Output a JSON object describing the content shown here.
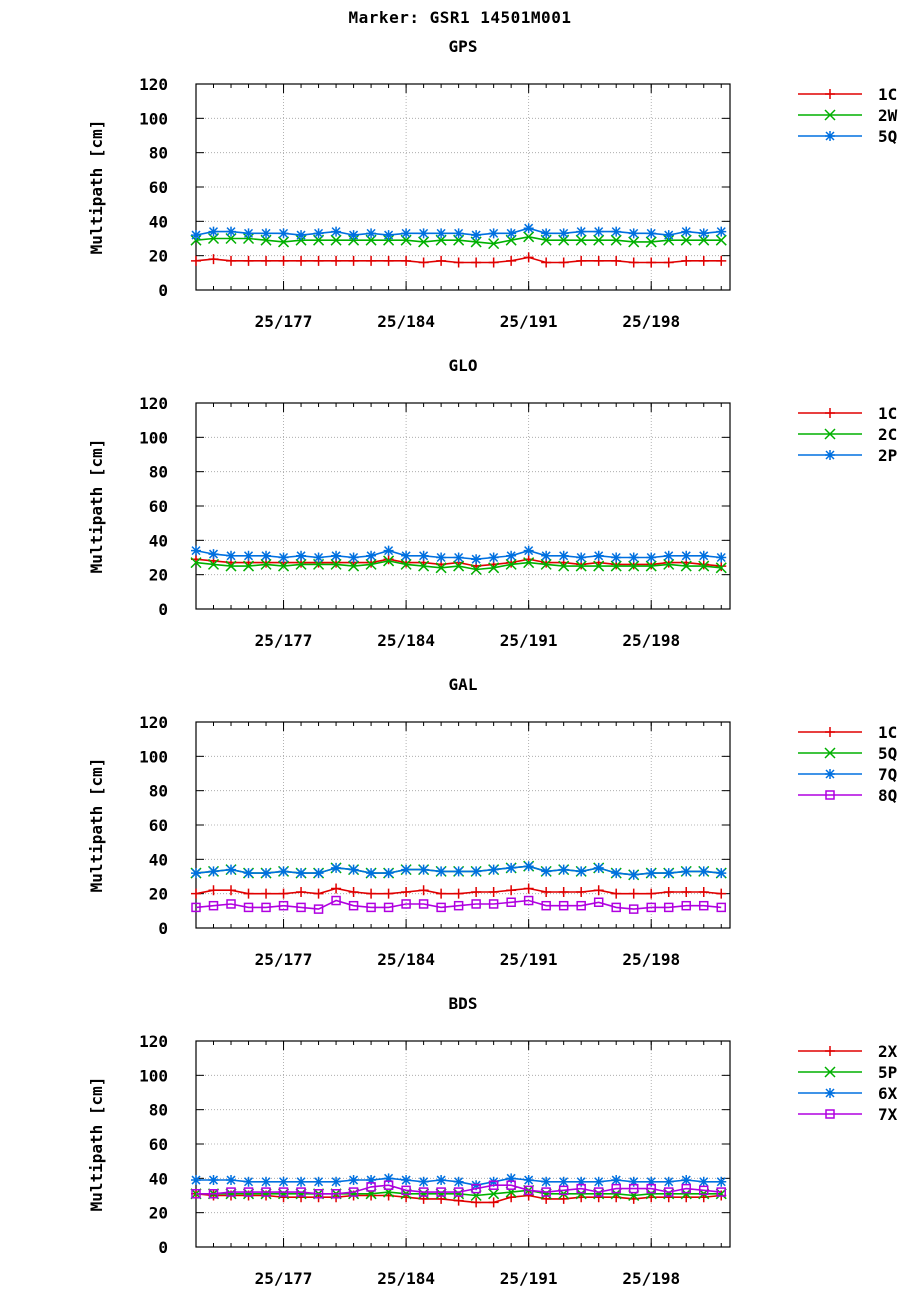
{
  "title": "Marker: GSR1 14501M001",
  "colors": {
    "red": "#e00000",
    "green": "#00b000",
    "blue": "#0070e0",
    "purple": "#b000e0"
  },
  "chart_data": [
    {
      "type": "line",
      "title": "GPS",
      "ylabel": "Multipath [cm]",
      "ylim": [
        0,
        120
      ],
      "yticks": [
        0,
        20,
        40,
        60,
        80,
        100,
        120
      ],
      "xlim": [
        172,
        202.5
      ],
      "xticks": [
        {
          "x": 177,
          "label": "25/177"
        },
        {
          "x": 184,
          "label": "25/184"
        },
        {
          "x": 191,
          "label": "25/191"
        },
        {
          "x": 198,
          "label": "25/198"
        }
      ],
      "legend_position": "right",
      "grid": true,
      "x": [
        172,
        173,
        174,
        175,
        176,
        177,
        178,
        179,
        180,
        181,
        182,
        183,
        184,
        185,
        186,
        187,
        188,
        189,
        190,
        191,
        192,
        193,
        194,
        195,
        196,
        197,
        198,
        199,
        200,
        201,
        202
      ],
      "series": [
        {
          "name": "1C",
          "color": "#e00000",
          "marker": "plus",
          "values": [
            17,
            18,
            17,
            17,
            17,
            17,
            17,
            17,
            17,
            17,
            17,
            17,
            17,
            16,
            17,
            16,
            16,
            16,
            17,
            19,
            16,
            16,
            17,
            17,
            17,
            16,
            16,
            16,
            17,
            17,
            17
          ]
        },
        {
          "name": "2W",
          "color": "#00b000",
          "marker": "x",
          "values": [
            29,
            30,
            30,
            30,
            29,
            28,
            29,
            29,
            29,
            29,
            29,
            29,
            29,
            28,
            29,
            29,
            28,
            27,
            29,
            31,
            29,
            29,
            29,
            29,
            29,
            28,
            28,
            29,
            29,
            29,
            29
          ]
        },
        {
          "name": "5Q",
          "color": "#0070e0",
          "marker": "star",
          "values": [
            32,
            34,
            34,
            33,
            33,
            33,
            32,
            33,
            34,
            32,
            33,
            32,
            33,
            33,
            33,
            33,
            32,
            33,
            33,
            36,
            33,
            33,
            34,
            34,
            34,
            33,
            33,
            32,
            34,
            33,
            34
          ]
        }
      ]
    },
    {
      "type": "line",
      "title": "GLO",
      "ylabel": "Multipath [cm]",
      "ylim": [
        0,
        120
      ],
      "yticks": [
        0,
        20,
        40,
        60,
        80,
        100,
        120
      ],
      "xlim": [
        172,
        202.5
      ],
      "xticks": [
        {
          "x": 177,
          "label": "25/177"
        },
        {
          "x": 184,
          "label": "25/184"
        },
        {
          "x": 191,
          "label": "25/191"
        },
        {
          "x": 198,
          "label": "25/198"
        }
      ],
      "legend_position": "right",
      "grid": true,
      "x": [
        172,
        173,
        174,
        175,
        176,
        177,
        178,
        179,
        180,
        181,
        182,
        183,
        184,
        185,
        186,
        187,
        188,
        189,
        190,
        191,
        192,
        193,
        194,
        195,
        196,
        197,
        198,
        199,
        200,
        201,
        202
      ],
      "series": [
        {
          "name": "1C",
          "color": "#e00000",
          "marker": "plus",
          "values": [
            29,
            28,
            27,
            27,
            27,
            27,
            27,
            27,
            27,
            27,
            27,
            29,
            27,
            27,
            26,
            27,
            25,
            26,
            27,
            29,
            27,
            27,
            26,
            27,
            26,
            26,
            26,
            27,
            27,
            26,
            25
          ]
        },
        {
          "name": "2C",
          "color": "#00b000",
          "marker": "x",
          "values": [
            27,
            26,
            25,
            25,
            26,
            25,
            26,
            26,
            26,
            25,
            26,
            28,
            26,
            25,
            24,
            25,
            23,
            24,
            26,
            27,
            26,
            25,
            25,
            25,
            25,
            25,
            25,
            26,
            25,
            25,
            24
          ]
        },
        {
          "name": "2P",
          "color": "#0070e0",
          "marker": "star",
          "values": [
            34,
            32,
            31,
            31,
            31,
            30,
            31,
            30,
            31,
            30,
            31,
            34,
            31,
            31,
            30,
            30,
            29,
            30,
            31,
            34,
            31,
            31,
            30,
            31,
            30,
            30,
            30,
            31,
            31,
            31,
            30
          ]
        }
      ]
    },
    {
      "type": "line",
      "title": "GAL",
      "ylabel": "Multipath [cm]",
      "ylim": [
        0,
        120
      ],
      "yticks": [
        0,
        20,
        40,
        60,
        80,
        100,
        120
      ],
      "xlim": [
        172,
        202.5
      ],
      "xticks": [
        {
          "x": 177,
          "label": "25/177"
        },
        {
          "x": 184,
          "label": "25/184"
        },
        {
          "x": 191,
          "label": "25/191"
        },
        {
          "x": 198,
          "label": "25/198"
        }
      ],
      "legend_position": "right",
      "grid": true,
      "x": [
        172,
        173,
        174,
        175,
        176,
        177,
        178,
        179,
        180,
        181,
        182,
        183,
        184,
        185,
        186,
        187,
        188,
        189,
        190,
        191,
        192,
        193,
        194,
        195,
        196,
        197,
        198,
        199,
        200,
        201,
        202
      ],
      "series": [
        {
          "name": "1C",
          "color": "#e00000",
          "marker": "plus",
          "values": [
            20,
            22,
            22,
            20,
            20,
            20,
            21,
            20,
            23,
            21,
            20,
            20,
            21,
            22,
            20,
            20,
            21,
            21,
            22,
            23,
            21,
            21,
            21,
            22,
            20,
            20,
            20,
            21,
            21,
            21,
            20
          ]
        },
        {
          "name": "5Q",
          "color": "#00b000",
          "marker": "x",
          "values": [
            32,
            33,
            34,
            32,
            32,
            33,
            32,
            32,
            35,
            34,
            32,
            32,
            34,
            34,
            33,
            33,
            33,
            34,
            35,
            36,
            33,
            34,
            33,
            35,
            32,
            31,
            32,
            32,
            33,
            33,
            32
          ]
        },
        {
          "name": "7Q",
          "color": "#0070e0",
          "marker": "star",
          "values": [
            32,
            33,
            34,
            32,
            32,
            33,
            32,
            32,
            35,
            34,
            32,
            32,
            34,
            34,
            33,
            33,
            33,
            34,
            35,
            36,
            33,
            34,
            33,
            35,
            32,
            31,
            32,
            32,
            33,
            33,
            32
          ]
        },
        {
          "name": "8Q",
          "color": "#b000e0",
          "marker": "square",
          "values": [
            12,
            13,
            14,
            12,
            12,
            13,
            12,
            11,
            16,
            13,
            12,
            12,
            14,
            14,
            12,
            13,
            14,
            14,
            15,
            16,
            13,
            13,
            13,
            15,
            12,
            11,
            12,
            12,
            13,
            13,
            12
          ]
        }
      ]
    },
    {
      "type": "line",
      "title": "BDS",
      "ylabel": "Multipath [cm]",
      "ylim": [
        0,
        120
      ],
      "yticks": [
        0,
        20,
        40,
        60,
        80,
        100,
        120
      ],
      "xlim": [
        172,
        202.5
      ],
      "xticks": [
        {
          "x": 177,
          "label": "25/177"
        },
        {
          "x": 184,
          "label": "25/184"
        },
        {
          "x": 191,
          "label": "25/191"
        },
        {
          "x": 198,
          "label": "25/198"
        }
      ],
      "legend_position": "right",
      "grid": true,
      "x": [
        172,
        173,
        174,
        175,
        176,
        177,
        178,
        179,
        180,
        181,
        182,
        183,
        184,
        185,
        186,
        187,
        188,
        189,
        190,
        191,
        192,
        193,
        194,
        195,
        196,
        197,
        198,
        199,
        200,
        201,
        202
      ],
      "series": [
        {
          "name": "2X",
          "color": "#e00000",
          "marker": "plus",
          "values": [
            31,
            30,
            30,
            30,
            30,
            29,
            29,
            29,
            29,
            30,
            30,
            30,
            29,
            28,
            28,
            27,
            26,
            26,
            29,
            30,
            28,
            28,
            29,
            29,
            29,
            28,
            29,
            29,
            29,
            29,
            30
          ]
        },
        {
          "name": "5P",
          "color": "#00b000",
          "marker": "x",
          "values": [
            31,
            31,
            31,
            31,
            31,
            31,
            31,
            31,
            31,
            31,
            31,
            32,
            31,
            31,
            31,
            31,
            30,
            31,
            32,
            33,
            31,
            31,
            31,
            31,
            31,
            30,
            31,
            31,
            31,
            31,
            31
          ]
        },
        {
          "name": "6X",
          "color": "#0070e0",
          "marker": "star",
          "values": [
            39,
            39,
            39,
            38,
            38,
            38,
            38,
            38,
            38,
            39,
            39,
            40,
            39,
            38,
            39,
            38,
            36,
            38,
            40,
            39,
            38,
            38,
            38,
            38,
            39,
            38,
            38,
            38,
            39,
            38,
            38
          ]
        },
        {
          "name": "7X",
          "color": "#b000e0",
          "marker": "square",
          "values": [
            31,
            31,
            32,
            32,
            32,
            32,
            32,
            31,
            31,
            32,
            35,
            36,
            33,
            32,
            32,
            32,
            34,
            36,
            36,
            33,
            32,
            33,
            34,
            32,
            34,
            34,
            34,
            32,
            34,
            33,
            32
          ]
        }
      ]
    }
  ]
}
